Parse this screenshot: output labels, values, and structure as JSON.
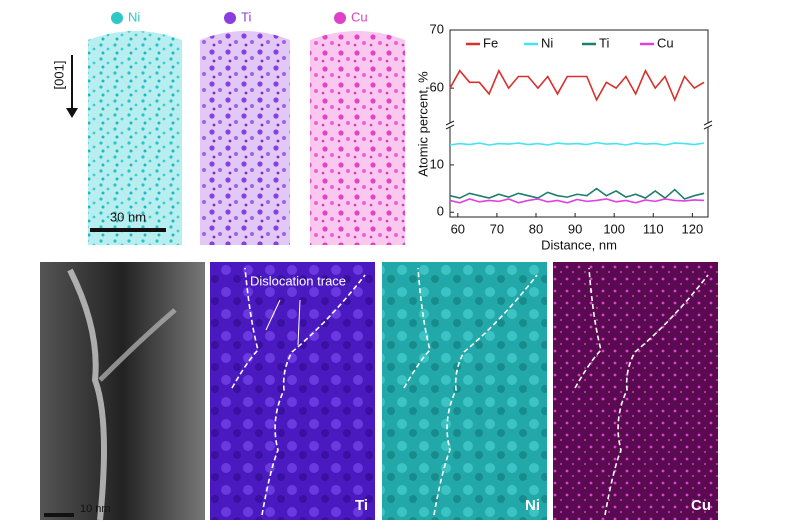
{
  "panels": {
    "top_labels": [
      "Ni",
      "Ti",
      "Cu"
    ],
    "direction": "[001]",
    "scale_top": "30 nm",
    "annotation": "Dislocation trace",
    "bottom_labels": [
      "Ti",
      "Ni",
      "Cu"
    ],
    "scale_bottom": "10 nm"
  },
  "chart_data": {
    "type": "line",
    "xlabel": "Distance, nm",
    "ylabel": "Atomic percent, %",
    "x": [
      58,
      60.5,
      63,
      65.5,
      68,
      70.5,
      73,
      75.5,
      78,
      80.5,
      83,
      85.5,
      88,
      90.5,
      93,
      95.5,
      98,
      100.5,
      103,
      105.5,
      108,
      110.5,
      113,
      115.5,
      118,
      120.5,
      123
    ],
    "series": [
      {
        "name": "Fe",
        "color": "#d8302a",
        "values": [
          60,
          63,
          61,
          61,
          59,
          63,
          60,
          62,
          62,
          60,
          62,
          59,
          62,
          62,
          62,
          58,
          61,
          60,
          62,
          59,
          63,
          60,
          62,
          58,
          62,
          60,
          61
        ]
      },
      {
        "name": "Ni",
        "color": "#46e4f2",
        "values": [
          14.2,
          14.5,
          14.3,
          14.6,
          14.2,
          14.5,
          14.4,
          14.6,
          14.3,
          14.5,
          14.2,
          14.6,
          14.4,
          14.5,
          14.3,
          14.7,
          14.4,
          14.5,
          14.2,
          14.6,
          14.4,
          14.5,
          14.2,
          14.6,
          14.5,
          14.3,
          14.6
        ]
      },
      {
        "name": "Ti",
        "color": "#1f7f6c",
        "values": [
          3.5,
          3,
          4,
          3.5,
          3,
          3.8,
          3.2,
          4,
          3.5,
          3,
          4.2,
          3.5,
          3.2,
          3.8,
          3.5,
          5,
          3.5,
          4.5,
          3.2,
          3.8,
          3,
          4.5,
          3,
          4.8,
          2.8,
          3.5,
          4
        ]
      },
      {
        "name": "Cu",
        "color": "#e040e0",
        "values": [
          2.5,
          2,
          2.8,
          2.2,
          2.5,
          2.3,
          2.8,
          2,
          2.5,
          2.8,
          2.2,
          2.5,
          2,
          2.7,
          2.3,
          2.5,
          2.8,
          2.2,
          2.5,
          2,
          2.6,
          2.3,
          2.8,
          2.5,
          2.4,
          2.6,
          2.5
        ]
      }
    ],
    "xlim": [
      58,
      124
    ],
    "xticks": [
      60,
      70,
      80,
      90,
      100,
      110,
      120
    ],
    "ylim": [
      -1,
      70
    ],
    "y_break": [
      18,
      54
    ],
    "yticks": [
      0,
      10,
      60,
      70
    ]
  }
}
